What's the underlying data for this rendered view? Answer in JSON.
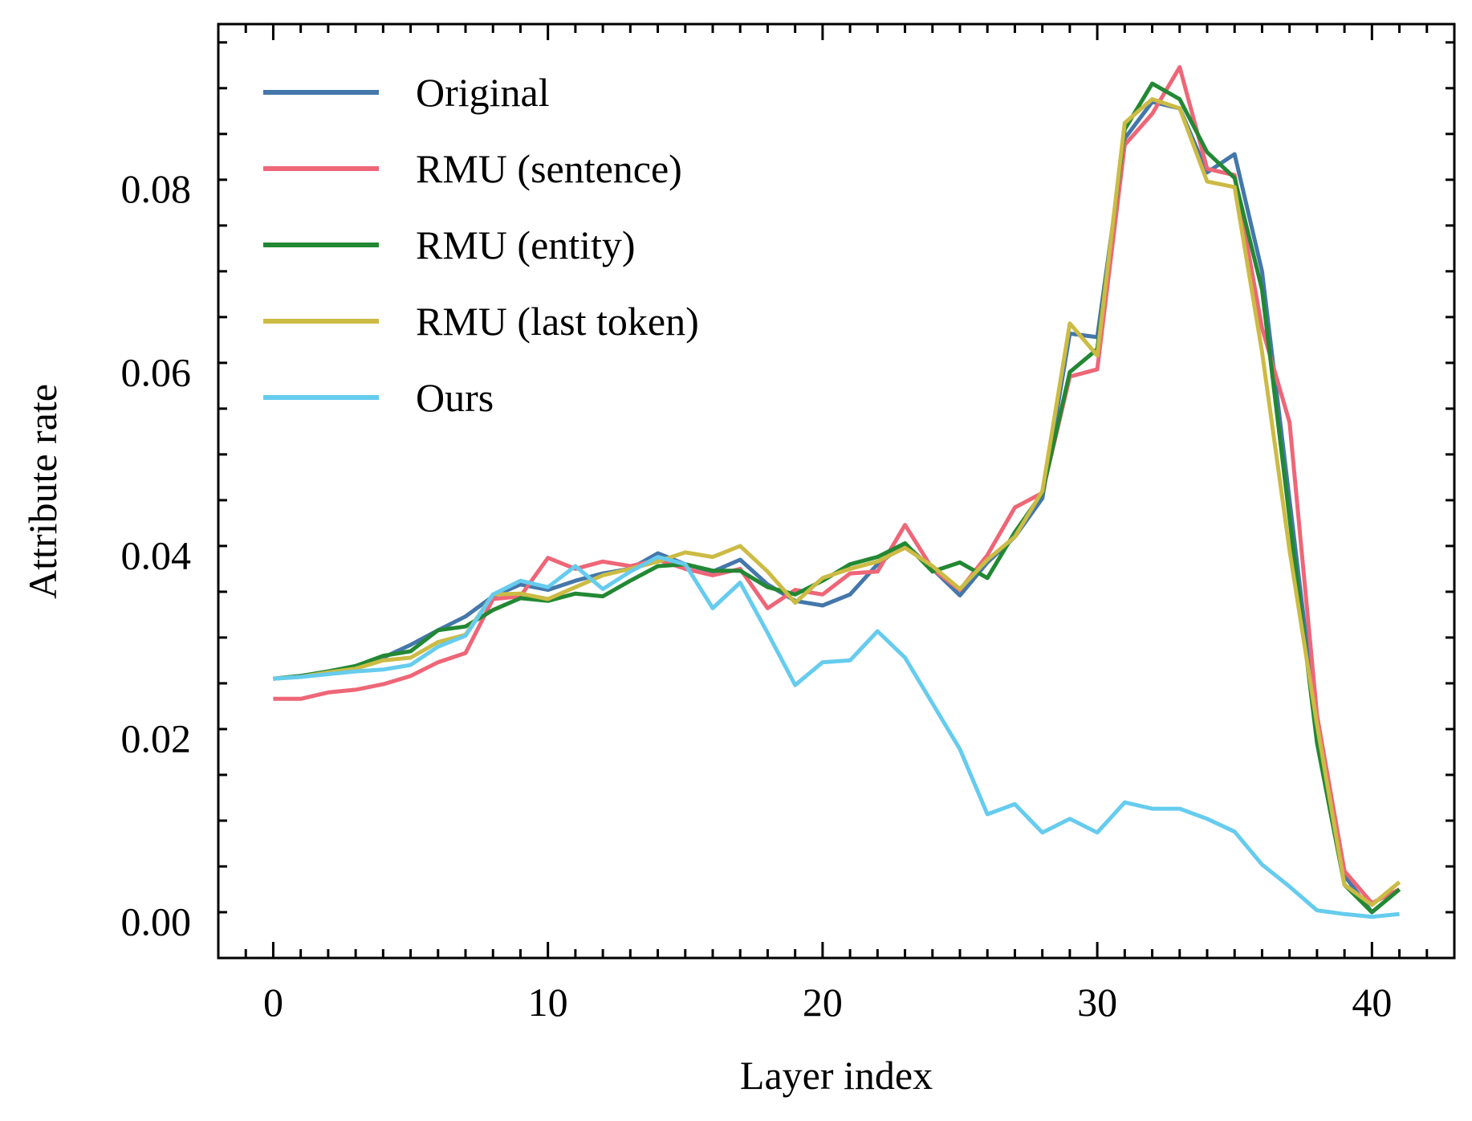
{
  "chart_data": {
    "type": "line",
    "title": "",
    "xlabel": "Layer index",
    "ylabel": "Attribute rate",
    "xlim": [
      -2,
      43
    ],
    "ylim": [
      -0.004,
      0.098
    ],
    "xticks": [
      0,
      10,
      20,
      30,
      40
    ],
    "xtick_labels": [
      "0",
      "10",
      "20",
      "30",
      "40"
    ],
    "yticks": [
      0.0,
      0.02,
      0.04,
      0.06,
      0.08
    ],
    "ytick_labels": [
      "0.00",
      "0.02",
      "0.04",
      "0.06",
      "0.08"
    ],
    "grid": false,
    "legend_position": "top-left",
    "x": [
      0,
      1,
      2,
      3,
      4,
      5,
      6,
      7,
      8,
      9,
      10,
      11,
      12,
      13,
      14,
      15,
      16,
      17,
      18,
      19,
      20,
      21,
      22,
      23,
      24,
      25,
      26,
      27,
      28,
      29,
      30,
      31,
      32,
      33,
      34,
      35,
      36,
      37,
      38,
      39,
      40,
      41
    ],
    "series": [
      {
        "name": "Original",
        "color": "#4477AA",
        "values": [
          0.0265,
          0.0268,
          0.0273,
          0.0278,
          0.0288,
          0.0302,
          0.0318,
          0.0333,
          0.0355,
          0.0368,
          0.0362,
          0.0372,
          0.038,
          0.0385,
          0.0402,
          0.039,
          0.0382,
          0.0395,
          0.0368,
          0.035,
          0.0345,
          0.0357,
          0.039,
          0.0412,
          0.0385,
          0.0356,
          0.0392,
          0.042,
          0.0462,
          0.0642,
          0.0638,
          0.0855,
          0.0895,
          0.0888,
          0.0818,
          0.0838,
          0.071,
          0.046,
          0.021,
          0.005,
          0.001,
          0.0035
        ]
      },
      {
        "name": "RMU (sentence)",
        "color": "#EE6677",
        "values": [
          0.0243,
          0.0243,
          0.025,
          0.0253,
          0.0259,
          0.0268,
          0.0283,
          0.0293,
          0.0352,
          0.0355,
          0.0397,
          0.0385,
          0.0393,
          0.0388,
          0.0395,
          0.0385,
          0.0378,
          0.0385,
          0.0342,
          0.0362,
          0.0357,
          0.038,
          0.0382,
          0.0433,
          0.0385,
          0.0362,
          0.04,
          0.0452,
          0.0468,
          0.0595,
          0.0603,
          0.0848,
          0.0882,
          0.0933,
          0.0822,
          0.0815,
          0.0648,
          0.0545,
          0.0225,
          0.0055,
          0.002,
          0.0035
        ]
      },
      {
        "name": "RMU (entity)",
        "color": "#228833",
        "values": [
          0.0265,
          0.0268,
          0.0273,
          0.0279,
          0.029,
          0.0295,
          0.0318,
          0.0322,
          0.034,
          0.0353,
          0.035,
          0.0358,
          0.0355,
          0.0372,
          0.0388,
          0.039,
          0.0383,
          0.0383,
          0.0365,
          0.0357,
          0.0372,
          0.039,
          0.0398,
          0.0413,
          0.0382,
          0.0392,
          0.0375,
          0.0425,
          0.0468,
          0.06,
          0.0625,
          0.0865,
          0.0915,
          0.0898,
          0.084,
          0.0812,
          0.069,
          0.044,
          0.0195,
          0.004,
          0.001,
          0.0035
        ]
      },
      {
        "name": "RMU (last token)",
        "color": "#CCBB44",
        "values": [
          0.0265,
          0.0267,
          0.0272,
          0.0276,
          0.0285,
          0.0288,
          0.0305,
          0.0313,
          0.0357,
          0.0358,
          0.0352,
          0.0365,
          0.0378,
          0.0385,
          0.0393,
          0.0403,
          0.0398,
          0.041,
          0.0382,
          0.0348,
          0.0375,
          0.0385,
          0.0393,
          0.0408,
          0.0388,
          0.0363,
          0.0395,
          0.042,
          0.047,
          0.0653,
          0.0618,
          0.0872,
          0.0898,
          0.0888,
          0.0808,
          0.0802,
          0.0622,
          0.0405,
          0.0215,
          0.004,
          0.0018,
          0.0043
        ]
      },
      {
        "name": "Ours",
        "color": "#66CCEE",
        "values": [
          0.0265,
          0.0267,
          0.027,
          0.0273,
          0.0275,
          0.028,
          0.03,
          0.0312,
          0.0357,
          0.0372,
          0.0365,
          0.0388,
          0.0363,
          0.0382,
          0.0398,
          0.039,
          0.0342,
          0.037,
          0.0315,
          0.0258,
          0.0283,
          0.0285,
          0.0317,
          0.0288,
          0.0238,
          0.0188,
          0.0117,
          0.0128,
          0.0097,
          0.0112,
          0.0097,
          0.013,
          0.0123,
          0.0123,
          0.0112,
          0.0098,
          0.0062,
          0.0038,
          0.0012,
          0.0008,
          0.0005,
          0.0008
        ]
      }
    ]
  }
}
